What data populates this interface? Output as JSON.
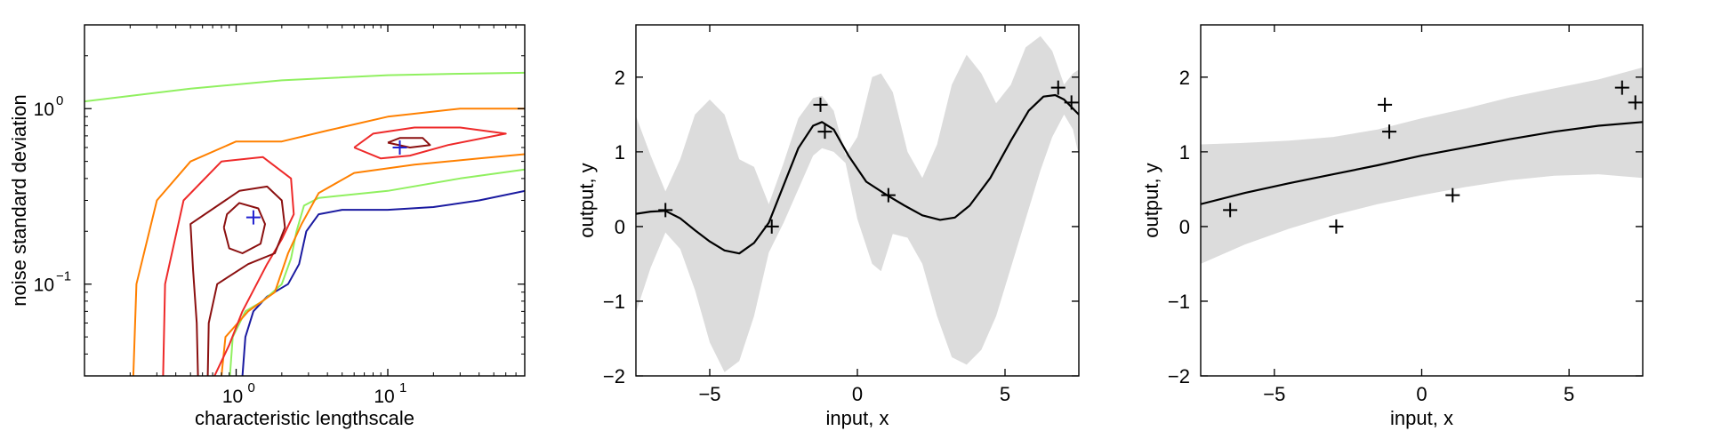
{
  "chart_data": [
    {
      "type": "contour",
      "xlabel": "characteristic lengthscale",
      "ylabel": "noise standard deviation",
      "xscale": "log",
      "yscale": "log",
      "xlim": [
        0.1,
        80
      ],
      "ylim": [
        0.03,
        3
      ],
      "x_ticks": [
        {
          "value": 1,
          "base": "10",
          "exp": "0"
        },
        {
          "value": 10,
          "base": "10",
          "exp": "1"
        }
      ],
      "y_ticks": [
        {
          "value": 0.1,
          "base": "10",
          "exp": "−1"
        },
        {
          "value": 1,
          "base": "10",
          "exp": "0"
        }
      ],
      "level_colors": [
        "#1a1aa0",
        "#90f060",
        "#ff8000",
        "#ee2a2a",
        "#8b1010"
      ],
      "contours": [
        {
          "color": "#1a1aa0",
          "points": [
            [
              1.1,
              0.03
            ],
            [
              1.15,
              0.05
            ],
            [
              1.3,
              0.07
            ],
            [
              1.6,
              0.085
            ],
            [
              2.2,
              0.1
            ],
            [
              2.6,
              0.13
            ],
            [
              2.9,
              0.2
            ],
            [
              3.5,
              0.25
            ],
            [
              5,
              0.265
            ],
            [
              10,
              0.265
            ],
            [
              20,
              0.275
            ],
            [
              40,
              0.3
            ],
            [
              80,
              0.34
            ]
          ]
        },
        {
          "color": "#1a1aa0",
          "points": [
            [
              0.13,
              3.2
            ],
            [
              0.17,
              3.2
            ]
          ]
        },
        {
          "color": "#90f060",
          "points": [
            [
              0.91,
              0.03
            ],
            [
              0.95,
              0.05
            ],
            [
              1.15,
              0.07
            ],
            [
              1.5,
              0.08
            ],
            [
              2.0,
              0.1
            ],
            [
              2.3,
              0.14
            ],
            [
              2.5,
              0.2
            ],
            [
              2.8,
              0.28
            ],
            [
              3.5,
              0.31
            ],
            [
              10,
              0.34
            ],
            [
              30,
              0.4
            ],
            [
              80,
              0.45
            ]
          ]
        },
        {
          "color": "#90f060",
          "points": [
            [
              0.1,
              1.1
            ],
            [
              0.5,
              1.3
            ],
            [
              2,
              1.45
            ],
            [
              10,
              1.55
            ],
            [
              30,
              1.58
            ],
            [
              80,
              1.6
            ]
          ]
        },
        {
          "color": "#ff8000",
          "points": [
            [
              0.21,
              0.03
            ],
            [
              0.22,
              0.1
            ],
            [
              0.3,
              0.3
            ],
            [
              0.5,
              0.5
            ],
            [
              1,
              0.65
            ],
            [
              2,
              0.65
            ],
            [
              4,
              0.75
            ],
            [
              10,
              0.9
            ],
            [
              30,
              1.0
            ],
            [
              80,
              1.0
            ]
          ]
        },
        {
          "color": "#ff8000",
          "points": [
            [
              0.8,
              0.03
            ],
            [
              0.85,
              0.05
            ],
            [
              1.2,
              0.07
            ],
            [
              1.8,
              0.09
            ],
            [
              2.2,
              0.15
            ],
            [
              2.7,
              0.22
            ],
            [
              3.5,
              0.33
            ],
            [
              6,
              0.43
            ],
            [
              15,
              0.48
            ],
            [
              40,
              0.52
            ],
            [
              80,
              0.55
            ]
          ]
        },
        {
          "color": "#ee2a2a",
          "points": [
            [
              0.33,
              0.03
            ],
            [
              0.34,
              0.1
            ],
            [
              0.45,
              0.3
            ],
            [
              0.8,
              0.5
            ],
            [
              1.5,
              0.53
            ],
            [
              2.3,
              0.4
            ],
            [
              2.4,
              0.25
            ],
            [
              2.0,
              0.18
            ],
            [
              1.6,
              0.13
            ],
            [
              1.1,
              0.07
            ],
            [
              0.9,
              0.045
            ],
            [
              0.72,
              0.03
            ]
          ]
        },
        {
          "color": "#ee2a2a",
          "points": [
            [
              6,
              0.6
            ],
            [
              9,
              0.52
            ],
            [
              14,
              0.54
            ],
            [
              25,
              0.62
            ],
            [
              60,
              0.72
            ],
            [
              30,
              0.78
            ],
            [
              15,
              0.78
            ],
            [
              8,
              0.72
            ],
            [
              6,
              0.6
            ]
          ]
        },
        {
          "color": "#8b1010",
          "points": [
            [
              0.65,
              0.03
            ],
            [
              0.66,
              0.06
            ],
            [
              0.75,
              0.1
            ],
            [
              1.2,
              0.13
            ],
            [
              1.8,
              0.15
            ],
            [
              2.1,
              0.21
            ],
            [
              2.0,
              0.3
            ],
            [
              1.6,
              0.36
            ],
            [
              1.05,
              0.34
            ],
            [
              0.5,
              0.22
            ],
            [
              0.52,
              0.12
            ],
            [
              0.55,
              0.06
            ],
            [
              0.56,
              0.03
            ]
          ]
        },
        {
          "color": "#8b1010",
          "points": [
            [
              0.83,
              0.21
            ],
            [
              0.9,
              0.16
            ],
            [
              1.1,
              0.15
            ],
            [
              1.45,
              0.17
            ],
            [
              1.55,
              0.22
            ],
            [
              1.4,
              0.27
            ],
            [
              1.05,
              0.29
            ],
            [
              0.87,
              0.25
            ],
            [
              0.83,
              0.21
            ]
          ]
        },
        {
          "color": "#8b1010",
          "points": [
            [
              10,
              0.64
            ],
            [
              14,
              0.6
            ],
            [
              19,
              0.62
            ],
            [
              17,
              0.68
            ],
            [
              12,
              0.68
            ],
            [
              10,
              0.64
            ]
          ]
        }
      ],
      "maxima": [
        {
          "x": 1.3,
          "y": 0.24
        },
        {
          "x": 12,
          "y": 0.6
        }
      ]
    },
    {
      "type": "line",
      "xlabel": "input, x",
      "ylabel": "output, y",
      "xlim": [
        -7.5,
        7.5
      ],
      "ylim": [
        -2,
        2.7
      ],
      "x_ticks": [
        -5,
        0,
        5
      ],
      "y_ticks": [
        -2,
        -1,
        0,
        1,
        2
      ],
      "band_color": "#dcdcdc",
      "mean_curve": [
        [
          -7.5,
          0.17
        ],
        [
          -7,
          0.2
        ],
        [
          -6.5,
          0.21
        ],
        [
          -6,
          0.11
        ],
        [
          -5.5,
          -0.05
        ],
        [
          -5,
          -0.2
        ],
        [
          -4.5,
          -0.32
        ],
        [
          -4,
          -0.36
        ],
        [
          -3.5,
          -0.22
        ],
        [
          -3,
          0.05
        ],
        [
          -2.5,
          0.55
        ],
        [
          -2,
          1.05
        ],
        [
          -1.5,
          1.35
        ],
        [
          -1.2,
          1.4
        ],
        [
          -0.8,
          1.3
        ],
        [
          -0.3,
          0.95
        ],
        [
          0.3,
          0.6
        ],
        [
          1,
          0.42
        ],
        [
          1.6,
          0.28
        ],
        [
          2.2,
          0.15
        ],
        [
          2.8,
          0.09
        ],
        [
          3.3,
          0.12
        ],
        [
          3.8,
          0.28
        ],
        [
          4.5,
          0.65
        ],
        [
          5.2,
          1.15
        ],
        [
          5.8,
          1.55
        ],
        [
          6.3,
          1.74
        ],
        [
          6.7,
          1.76
        ],
        [
          7.0,
          1.7
        ],
        [
          7.5,
          1.5
        ]
      ],
      "band_upper": [
        [
          -7.5,
          1.48
        ],
        [
          -7,
          0.95
        ],
        [
          -6.5,
          0.47
        ],
        [
          -6,
          0.9
        ],
        [
          -5.5,
          1.5
        ],
        [
          -5,
          1.7
        ],
        [
          -4.5,
          1.5
        ],
        [
          -4,
          0.9
        ],
        [
          -3.5,
          0.8
        ],
        [
          -3,
          0.3
        ],
        [
          -2.5,
          0.85
        ],
        [
          -2,
          1.45
        ],
        [
          -1.5,
          1.72
        ],
        [
          -1.2,
          1.75
        ],
        [
          -0.8,
          1.55
        ],
        [
          -0.4,
          0.95
        ],
        [
          0,
          1.2
        ],
        [
          0.5,
          2.0
        ],
        [
          0.8,
          2.05
        ],
        [
          1.2,
          1.8
        ],
        [
          1.7,
          1.0
        ],
        [
          2.2,
          0.65
        ],
        [
          2.7,
          1.1
        ],
        [
          3.2,
          1.9
        ],
        [
          3.7,
          2.3
        ],
        [
          4.2,
          2.05
        ],
        [
          4.7,
          1.65
        ],
        [
          5.2,
          1.9
        ],
        [
          5.7,
          2.4
        ],
        [
          6.2,
          2.55
        ],
        [
          6.6,
          2.35
        ],
        [
          7.0,
          1.9
        ],
        [
          7.3,
          2.05
        ],
        [
          7.5,
          2.1
        ]
      ],
      "band_lower": [
        [
          7.5,
          0.95
        ],
        [
          7.3,
          1.3
        ],
        [
          7.0,
          1.5
        ],
        [
          6.6,
          1.2
        ],
        [
          6.2,
          0.75
        ],
        [
          5.7,
          0.1
        ],
        [
          5.2,
          -0.55
        ],
        [
          4.7,
          -1.2
        ],
        [
          4.2,
          -1.65
        ],
        [
          3.7,
          -1.85
        ],
        [
          3.2,
          -1.75
        ],
        [
          2.7,
          -1.2
        ],
        [
          2.2,
          -0.5
        ],
        [
          1.7,
          -0.15
        ],
        [
          1.2,
          -0.1
        ],
        [
          0.8,
          -0.6
        ],
        [
          0.5,
          -0.5
        ],
        [
          0,
          0.1
        ],
        [
          -0.4,
          0.85
        ],
        [
          -0.8,
          1.0
        ],
        [
          -1.2,
          1.05
        ],
        [
          -1.5,
          0.95
        ],
        [
          -2,
          0.5
        ],
        [
          -2.5,
          0.05
        ],
        [
          -3,
          -0.35
        ],
        [
          -3.5,
          -1.2
        ],
        [
          -4,
          -1.8
        ],
        [
          -4.5,
          -1.95
        ],
        [
          -5,
          -1.55
        ],
        [
          -5.5,
          -0.85
        ],
        [
          -6,
          -0.3
        ],
        [
          -6.5,
          -0.08
        ],
        [
          -7,
          -0.55
        ],
        [
          -7.5,
          -1.15
        ]
      ],
      "observations": [
        [
          -6.5,
          0.22
        ],
        [
          -2.9,
          0.0
        ],
        [
          -1.25,
          1.63
        ],
        [
          -1.1,
          1.27
        ],
        [
          1.05,
          0.42
        ],
        [
          6.8,
          1.86
        ],
        [
          7.25,
          1.66
        ]
      ]
    },
    {
      "type": "line",
      "xlabel": "input, x",
      "ylabel": "output, y",
      "xlim": [
        -7.5,
        7.5
      ],
      "ylim": [
        -2,
        2.7
      ],
      "x_ticks": [
        -5,
        0,
        5
      ],
      "y_ticks": [
        -2,
        -1,
        0,
        1,
        2
      ],
      "band_color": "#dcdcdc",
      "mean_curve": [
        [
          -7.5,
          0.3
        ],
        [
          -6,
          0.45
        ],
        [
          -4.5,
          0.58
        ],
        [
          -3,
          0.7
        ],
        [
          -1.5,
          0.82
        ],
        [
          0,
          0.95
        ],
        [
          1.5,
          1.06
        ],
        [
          3,
          1.17
        ],
        [
          4.5,
          1.27
        ],
        [
          6,
          1.35
        ],
        [
          7.5,
          1.4
        ]
      ],
      "band_upper": [
        [
          -7.5,
          1.1
        ],
        [
          -6,
          1.12
        ],
        [
          -4.5,
          1.15
        ],
        [
          -3,
          1.2
        ],
        [
          -1.5,
          1.3
        ],
        [
          0,
          1.45
        ],
        [
          1.5,
          1.58
        ],
        [
          3,
          1.73
        ],
        [
          4.5,
          1.85
        ],
        [
          6,
          1.97
        ],
        [
          7.5,
          2.13
        ]
      ],
      "band_lower": [
        [
          7.5,
          0.65
        ],
        [
          6,
          0.7
        ],
        [
          4.5,
          0.68
        ],
        [
          3,
          0.62
        ],
        [
          1.5,
          0.53
        ],
        [
          0,
          0.42
        ],
        [
          -1.5,
          0.3
        ],
        [
          -3,
          0.15
        ],
        [
          -4.5,
          -0.03
        ],
        [
          -6,
          -0.24
        ],
        [
          -7.5,
          -0.5
        ]
      ],
      "observations": [
        [
          -6.5,
          0.22
        ],
        [
          -2.9,
          0.0
        ],
        [
          -1.25,
          1.63
        ],
        [
          -1.1,
          1.27
        ],
        [
          1.05,
          0.42
        ],
        [
          6.8,
          1.86
        ],
        [
          7.25,
          1.66
        ]
      ]
    }
  ]
}
